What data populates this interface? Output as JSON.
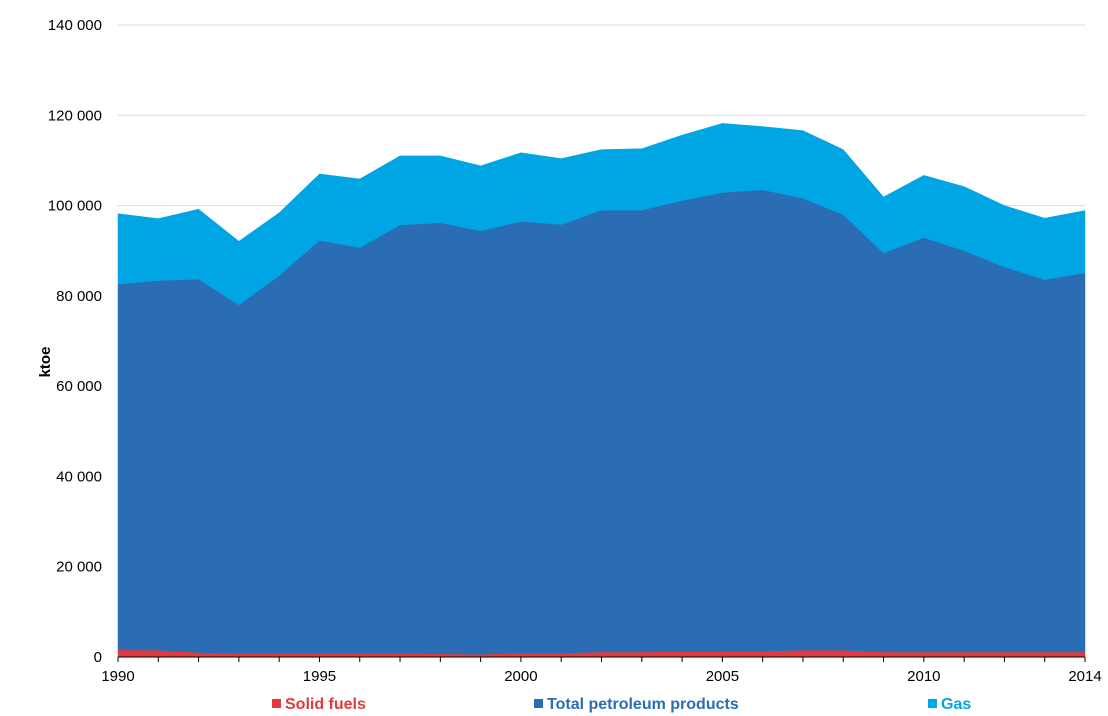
{
  "chart_data": {
    "type": "area",
    "stacked": true,
    "ylabel": "ktoe",
    "xlabel": "",
    "ylim": [
      0,
      140000
    ],
    "xlim": [
      1990,
      2014
    ],
    "y_ticks": [
      0,
      20000,
      40000,
      60000,
      80000,
      100000,
      120000,
      140000
    ],
    "y_tick_labels": [
      "0",
      "20 000",
      "40 000",
      "60 000",
      "80 000",
      "100 000",
      "120 000",
      "140 000"
    ],
    "x_ticks": [
      1990,
      1995,
      2000,
      2005,
      2010,
      2014
    ],
    "x_tick_labels": [
      "1990",
      "1995",
      "2000",
      "2005",
      "2010",
      "2014"
    ],
    "grid": "horizontal",
    "legend_position": "bottom",
    "x": [
      1990,
      1991,
      1992,
      1993,
      1994,
      1995,
      1996,
      1997,
      1998,
      1999,
      2000,
      2001,
      2002,
      2003,
      2004,
      2005,
      2006,
      2007,
      2008,
      2009,
      2010,
      2011,
      2012,
      2013,
      2014
    ],
    "series": [
      {
        "name": "Solid fuels",
        "color": "#e0393e",
        "values": [
          1600,
          1500,
          1000,
          800,
          800,
          800,
          800,
          800,
          700,
          600,
          900,
          900,
          1100,
          1100,
          1200,
          1300,
          1300,
          1500,
          1500,
          1100,
          1100,
          1100,
          1100,
          1100,
          1100
        ]
      },
      {
        "name": "Total petroleum products",
        "color": "#2a6db5",
        "values": [
          81000,
          81900,
          82700,
          77200,
          83700,
          91500,
          89900,
          94900,
          95500,
          93800,
          95600,
          94900,
          97900,
          97900,
          99900,
          101600,
          102200,
          100100,
          96500,
          88400,
          91800,
          88900,
          85300,
          82500,
          84000
        ]
      },
      {
        "name": "Gas",
        "color": "#00a5e3",
        "values": [
          15600,
          13700,
          15500,
          14100,
          13900,
          14700,
          15200,
          15300,
          14800,
          14400,
          15200,
          14600,
          13400,
          13600,
          14500,
          15300,
          14000,
          15000,
          14400,
          12400,
          13800,
          14200,
          13600,
          13600,
          13800
        ]
      }
    ]
  }
}
